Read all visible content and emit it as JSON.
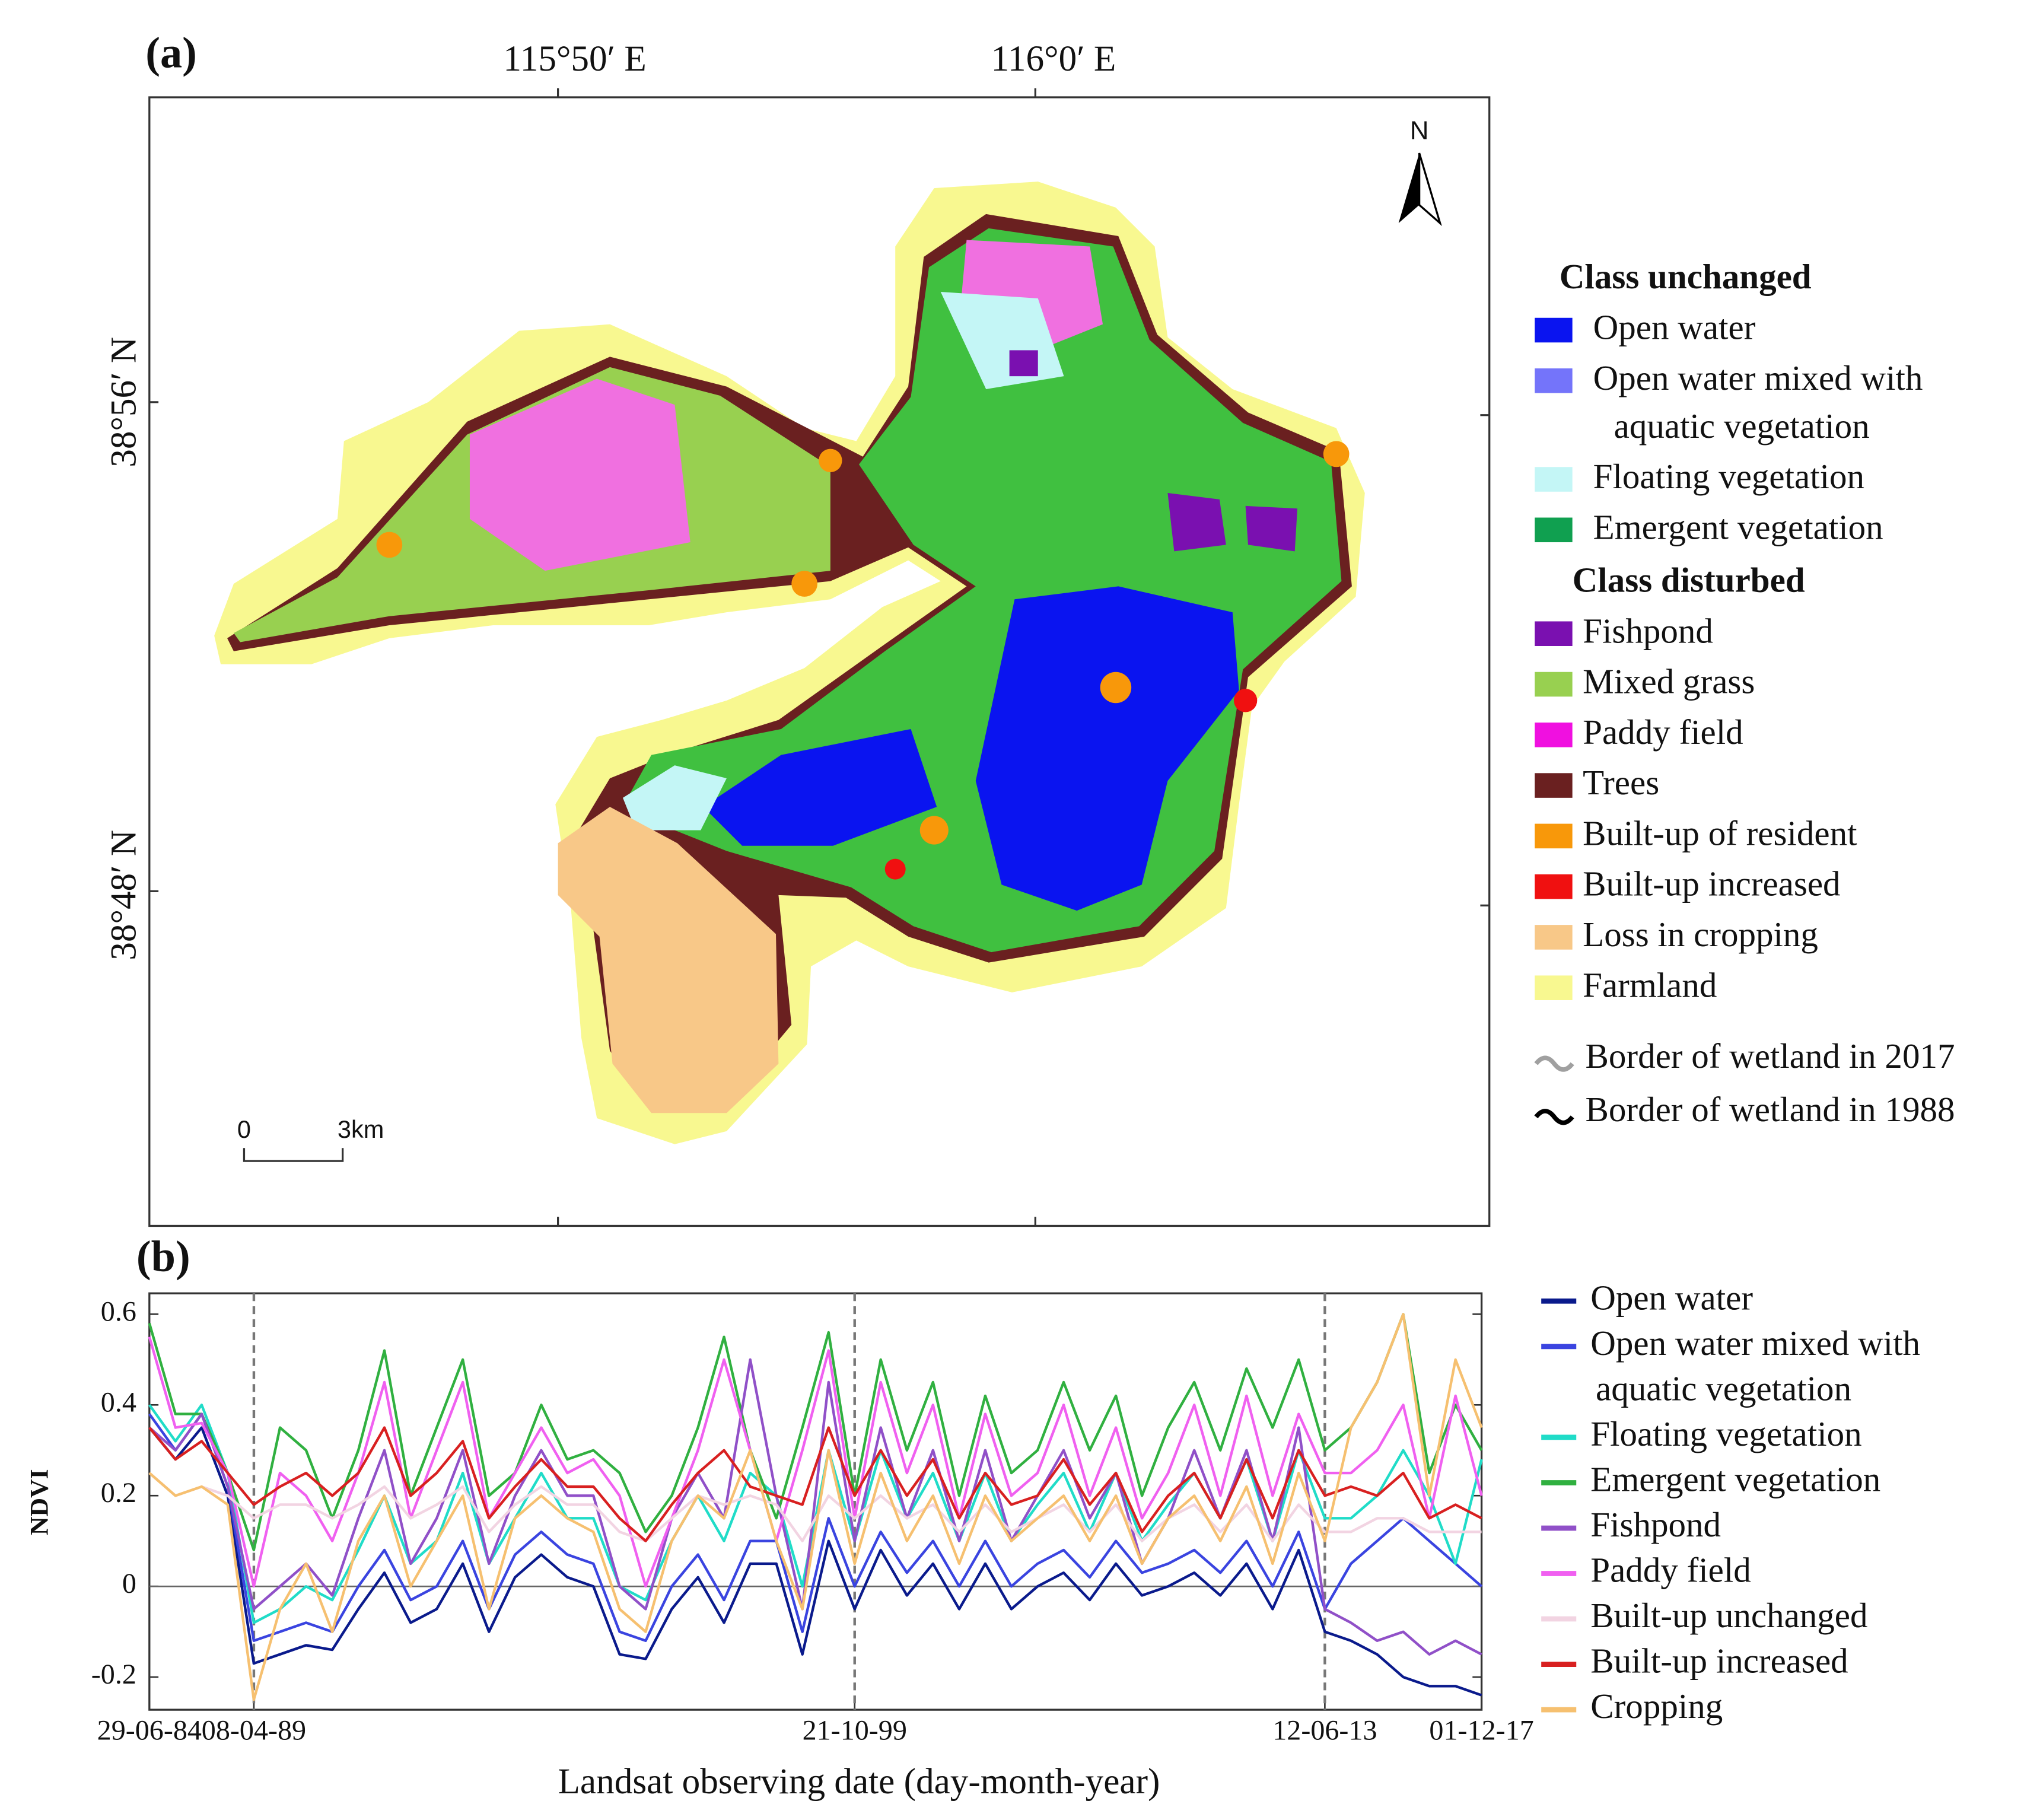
{
  "map": {
    "panel_label": "(a)",
    "lon_labels": [
      "115°50′ E",
      "116°0′ E"
    ],
    "lat_labels": [
      "38°56′ N",
      "38°48′ N"
    ],
    "north": "N",
    "scale_labels": [
      "0",
      "3km"
    ],
    "legend": [
      {
        "header": "Class unchanged",
        "items": [
          {
            "label": "Open water",
            "color": "#0a14f0"
          },
          {
            "label": "Open water mixed with aquatic vegetation",
            "color": "#7474fa"
          },
          {
            "label": "Floating vegetation",
            "color": "#c4f6f6"
          },
          {
            "label": "Emergent vegetation",
            "color": "#10a050"
          }
        ]
      },
      {
        "header": "Class disturbed",
        "items": [
          {
            "label": "Fishpond",
            "color": "#7a10b0"
          },
          {
            "label": "Mixed grass",
            "color": "#98d050"
          },
          {
            "label": "Paddy field",
            "color": "#f010e0"
          },
          {
            "label": "Trees",
            "color": "#6a2020"
          },
          {
            "label": "Built-up of resident",
            "color": "#f8980a"
          },
          {
            "label": "Built-up increased",
            "color": "#f01010"
          },
          {
            "label": "Loss in cropping",
            "color": "#f8c888"
          },
          {
            "label": "Farmland",
            "color": "#f8f890"
          }
        ]
      }
    ],
    "borders": [
      {
        "label": "Border of wetland in 2017",
        "color": "#a0a0a0"
      },
      {
        "label": "Border of wetland in 1988",
        "color": "#000000"
      }
    ]
  },
  "chart_data": {
    "type": "line",
    "panel_label": "(b)",
    "y_label": "NDVI",
    "x_label": "Landsat observing date (day-month-year)",
    "categories": [
      "29-06-84",
      null,
      null,
      null,
      "08-04-89",
      null,
      null,
      null,
      null,
      null,
      null,
      null,
      null,
      null,
      null,
      null,
      null,
      null,
      null,
      null,
      null,
      null,
      null,
      null,
      null,
      null,
      null,
      "21-10-99",
      null,
      null,
      null,
      null,
      null,
      null,
      null,
      null,
      null,
      null,
      null,
      null,
      null,
      null,
      null,
      null,
      null,
      "12-06-13",
      null,
      null,
      null,
      null,
      null,
      "01-12-17"
    ],
    "ylim": [
      -0.272,
      0.646
    ],
    "yticks": [
      -0.2,
      0,
      0.2,
      0.4,
      0.6
    ],
    "zero_line": true,
    "dashed_lines": true,
    "series": [
      {
        "name": "Open water",
        "color": "#0a1a8c",
        "values": [
          0.35,
          0.28,
          0.35,
          0.2,
          -0.17,
          -0.15,
          -0.13,
          -0.14,
          -0.05,
          0.03,
          -0.08,
          -0.05,
          0.05,
          -0.1,
          0.02,
          0.07,
          0.02,
          0.0,
          -0.15,
          -0.16,
          -0.05,
          0.02,
          -0.08,
          0.05,
          0.05,
          -0.15,
          0.1,
          -0.05,
          0.08,
          -0.02,
          0.05,
          -0.05,
          0.05,
          -0.05,
          0.0,
          0.03,
          -0.03,
          0.05,
          -0.02,
          0.0,
          0.03,
          -0.02,
          0.05,
          -0.05,
          0.08,
          -0.1,
          -0.12,
          -0.15,
          -0.2,
          -0.22,
          -0.22,
          -0.24
        ]
      },
      {
        "name": "Open water mixed with aquatic vegetation",
        "color": "#3a44e0",
        "values": [
          0.38,
          0.3,
          0.38,
          0.22,
          -0.12,
          -0.1,
          -0.08,
          -0.1,
          0.0,
          0.08,
          -0.03,
          0.0,
          0.1,
          -0.05,
          0.07,
          0.12,
          0.07,
          0.05,
          -0.1,
          -0.12,
          0.0,
          0.07,
          -0.03,
          0.1,
          0.1,
          -0.1,
          0.15,
          0.0,
          0.12,
          0.03,
          0.1,
          0.0,
          0.1,
          0.0,
          0.05,
          0.08,
          0.02,
          0.1,
          0.03,
          0.05,
          0.08,
          0.03,
          0.1,
          0.0,
          0.12,
          -0.05,
          0.05,
          0.1,
          0.15,
          0.1,
          0.05,
          0.0
        ]
      },
      {
        "name": "Floating vegetation",
        "color": "#20dcc8",
        "values": [
          0.4,
          0.32,
          0.4,
          0.25,
          -0.08,
          -0.05,
          0.0,
          -0.03,
          0.08,
          0.2,
          0.05,
          0.1,
          0.25,
          0.05,
          0.15,
          0.25,
          0.15,
          0.15,
          0.0,
          -0.03,
          0.1,
          0.2,
          0.1,
          0.25,
          0.2,
          0.0,
          0.3,
          0.1,
          0.3,
          0.15,
          0.25,
          0.1,
          0.25,
          0.1,
          0.18,
          0.25,
          0.12,
          0.25,
          0.1,
          0.18,
          0.25,
          0.15,
          0.28,
          0.1,
          0.3,
          0.15,
          0.15,
          0.2,
          0.3,
          0.2,
          0.05,
          0.28
        ]
      },
      {
        "name": "Emergent vegetation",
        "color": "#30b040",
        "values": [
          0.58,
          0.38,
          0.38,
          0.25,
          0.08,
          0.35,
          0.3,
          0.15,
          0.3,
          0.52,
          0.2,
          0.35,
          0.5,
          0.2,
          0.25,
          0.4,
          0.28,
          0.3,
          0.25,
          0.12,
          0.2,
          0.35,
          0.55,
          0.3,
          0.15,
          0.35,
          0.56,
          0.2,
          0.5,
          0.3,
          0.45,
          0.2,
          0.42,
          0.25,
          0.3,
          0.45,
          0.3,
          0.42,
          0.2,
          0.35,
          0.45,
          0.3,
          0.48,
          0.35,
          0.5,
          0.3,
          0.35,
          0.45,
          0.6,
          0.25,
          0.4,
          0.3
        ]
      },
      {
        "name": "Fishpond",
        "color": "#9050c8",
        "values": [
          0.35,
          0.3,
          0.38,
          0.22,
          -0.05,
          0.0,
          0.05,
          -0.02,
          0.15,
          0.3,
          0.05,
          0.15,
          0.3,
          0.05,
          0.2,
          0.3,
          0.2,
          0.2,
          0.0,
          -0.05,
          0.15,
          0.25,
          0.15,
          0.5,
          0.2,
          -0.05,
          0.45,
          0.1,
          0.35,
          0.15,
          0.3,
          0.1,
          0.3,
          0.1,
          0.2,
          0.3,
          0.15,
          0.25,
          0.05,
          0.15,
          0.3,
          0.15,
          0.3,
          0.1,
          0.35,
          -0.05,
          -0.08,
          -0.12,
          -0.1,
          -0.15,
          -0.12,
          -0.15
        ]
      },
      {
        "name": "Paddy field",
        "color": "#f060f0",
        "values": [
          0.55,
          0.35,
          0.36,
          0.25,
          0.0,
          0.25,
          0.2,
          0.1,
          0.25,
          0.45,
          0.15,
          0.3,
          0.45,
          0.15,
          0.25,
          0.35,
          0.25,
          0.28,
          0.2,
          0.0,
          0.15,
          0.3,
          0.5,
          0.3,
          0.1,
          0.3,
          0.52,
          0.15,
          0.45,
          0.25,
          0.4,
          0.15,
          0.38,
          0.2,
          0.25,
          0.4,
          0.2,
          0.35,
          0.15,
          0.25,
          0.4,
          0.2,
          0.42,
          0.2,
          0.38,
          0.25,
          0.25,
          0.3,
          0.4,
          0.15,
          0.42,
          0.2
        ]
      },
      {
        "name": "Built-up unchanged",
        "color": "#f2d4e2",
        "values": [
          0.25,
          0.2,
          0.22,
          0.2,
          0.15,
          0.18,
          0.18,
          0.15,
          0.18,
          0.22,
          0.15,
          0.18,
          0.22,
          0.12,
          0.18,
          0.22,
          0.18,
          0.18,
          0.12,
          0.1,
          0.15,
          0.2,
          0.18,
          0.2,
          0.18,
          0.1,
          0.2,
          0.15,
          0.2,
          0.15,
          0.18,
          0.12,
          0.18,
          0.12,
          0.15,
          0.18,
          0.12,
          0.18,
          0.1,
          0.15,
          0.18,
          0.12,
          0.18,
          0.1,
          0.18,
          0.12,
          0.12,
          0.15,
          0.15,
          0.12,
          0.12,
          0.12
        ]
      },
      {
        "name": "Built-up increased",
        "color": "#d82020",
        "values": [
          0.35,
          0.28,
          0.32,
          0.25,
          0.18,
          0.22,
          0.25,
          0.2,
          0.25,
          0.35,
          0.2,
          0.25,
          0.32,
          0.15,
          0.22,
          0.28,
          0.22,
          0.22,
          0.15,
          0.1,
          0.18,
          0.25,
          0.3,
          0.22,
          0.2,
          0.18,
          0.35,
          0.2,
          0.3,
          0.2,
          0.28,
          0.15,
          0.25,
          0.18,
          0.2,
          0.28,
          0.18,
          0.25,
          0.12,
          0.2,
          0.25,
          0.15,
          0.28,
          0.15,
          0.3,
          0.2,
          0.22,
          0.2,
          0.25,
          0.15,
          0.18,
          0.15
        ]
      },
      {
        "name": "Cropping",
        "color": "#f6c070",
        "values": [
          0.25,
          0.2,
          0.22,
          0.18,
          -0.25,
          -0.05,
          0.05,
          -0.1,
          0.1,
          0.2,
          0.0,
          0.1,
          0.2,
          -0.05,
          0.15,
          0.2,
          0.15,
          0.12,
          -0.05,
          -0.1,
          0.1,
          0.2,
          0.15,
          0.3,
          0.1,
          -0.05,
          0.3,
          0.05,
          0.25,
          0.1,
          0.2,
          0.05,
          0.2,
          0.1,
          0.15,
          0.2,
          0.1,
          0.2,
          0.05,
          0.15,
          0.2,
          0.1,
          0.22,
          0.05,
          0.25,
          0.1,
          0.35,
          0.45,
          0.6,
          0.2,
          0.5,
          0.35
        ]
      }
    ]
  }
}
